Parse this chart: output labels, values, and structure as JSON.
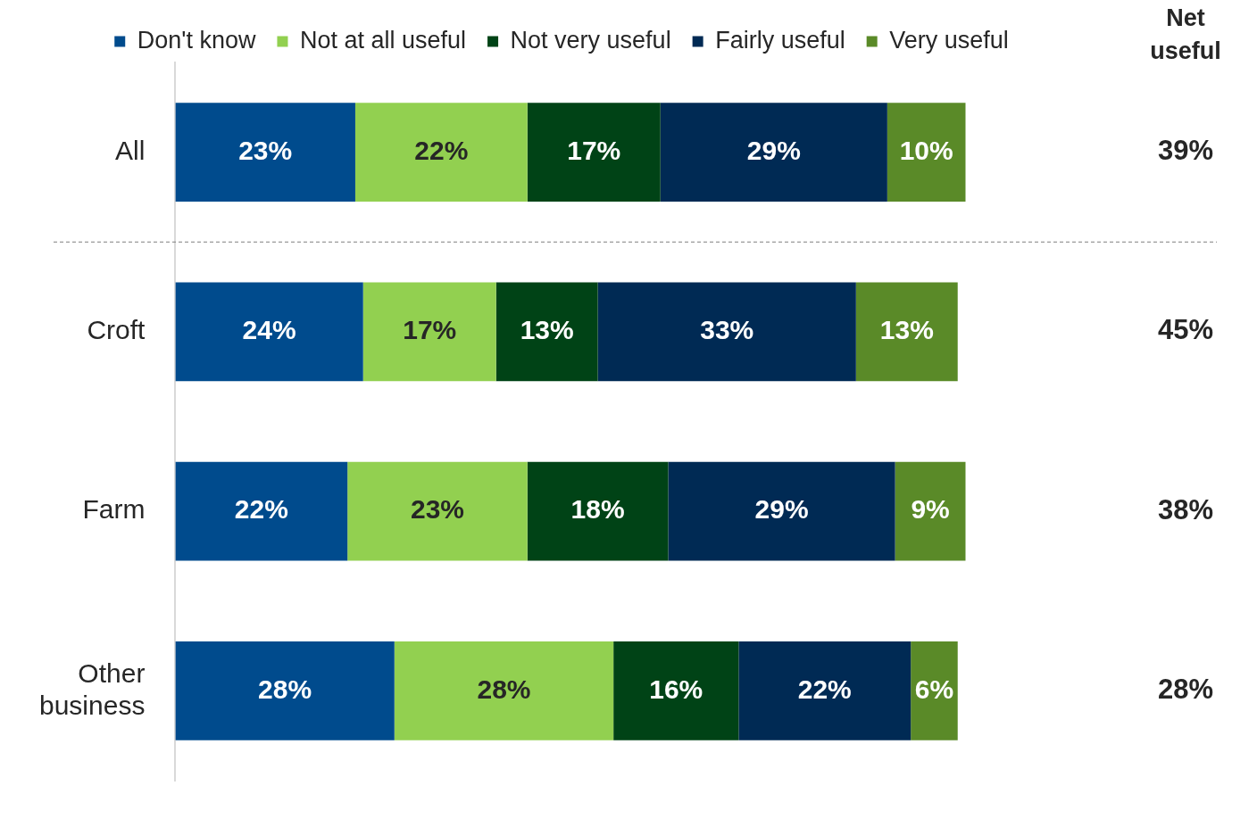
{
  "chart_data": {
    "type": "bar",
    "orientation": "horizontal",
    "stacked": true,
    "categories": [
      "All",
      "Croft",
      "Farm",
      "Other business"
    ],
    "series": [
      {
        "name": "Don't know",
        "color": "#004b8d",
        "values": [
          23,
          24,
          22,
          28
        ],
        "value_labels": [
          "23%",
          "24%",
          "22%",
          "28%"
        ]
      },
      {
        "name": "Not at all useful",
        "color": "#92d050",
        "values": [
          22,
          17,
          23,
          28
        ],
        "value_labels": [
          "22%",
          "17%",
          "23%",
          "28%"
        ]
      },
      {
        "name": "Not very useful",
        "color": "#004316",
        "values": [
          17,
          13,
          18,
          16
        ],
        "value_labels": [
          "17%",
          "13%",
          "18%",
          "16%"
        ]
      },
      {
        "name": "Fairly useful",
        "color": "#002a54",
        "values": [
          29,
          33,
          29,
          22
        ],
        "value_labels": [
          "29%",
          "33%",
          "29%",
          "22%"
        ]
      },
      {
        "name": "Very useful",
        "color": "#5a8a28",
        "values": [
          10,
          13,
          9,
          6
        ],
        "value_labels": [
          "10%",
          "13%",
          "9%",
          "6%"
        ]
      }
    ],
    "tick_labels": "y",
    "legend": "top",
    "annotations": [
      "Net useful",
      "39%",
      "45%",
      "38%",
      "28%"
    ]
  }
}
